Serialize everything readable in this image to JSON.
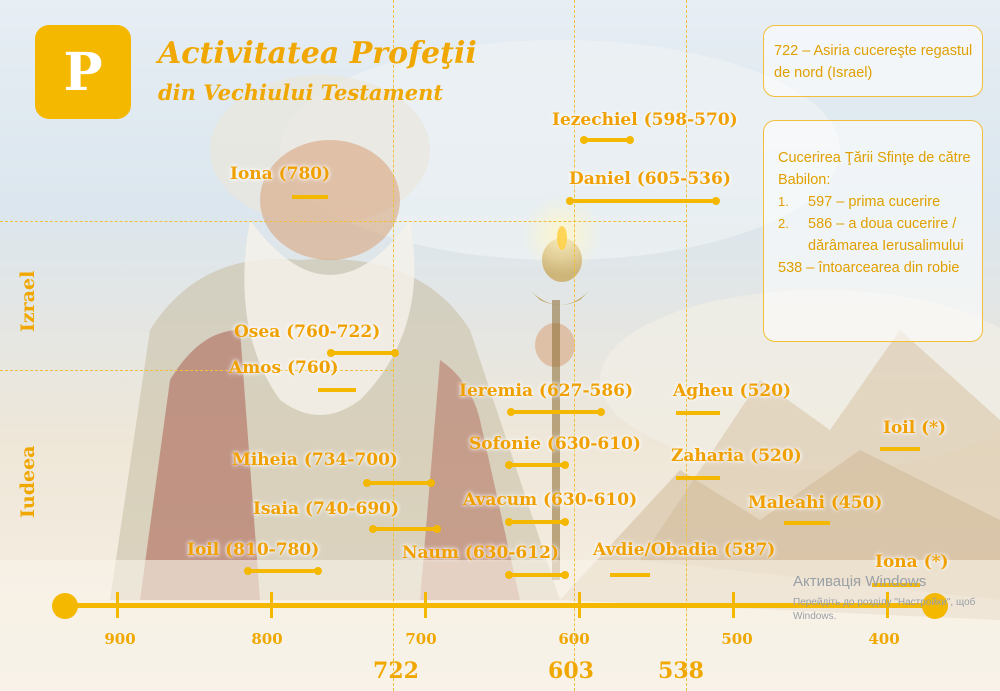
{
  "header": {
    "logo_letter": "P",
    "title_line1": "Activitatea Profeţii",
    "title_line2": "din Vechiului Testament"
  },
  "info_box_1": {
    "text": "722 – Asiria cucereşte regastul de nord (Israel)"
  },
  "info_box_2": {
    "heading": "Cucerirea Ţării Sfinţe de către Babilon:",
    "items": [
      {
        "num": "1.",
        "text": "597 – prima cucerire"
      },
      {
        "num": "2.",
        "text": "586 – a doua cucerire / dărâmarea Ierusalimului"
      }
    ],
    "footer": "538 – întoarcearea din robie"
  },
  "side_labels": {
    "israel": "Izrael",
    "judea": "Iudeea"
  },
  "prophets": [
    {
      "label": "Iezechiel (598-570)",
      "start": 598,
      "end": 570,
      "kingdom": "babylon"
    },
    {
      "label": "Daniel (605-536)",
      "start": 605,
      "end": 536,
      "kingdom": "babylon"
    },
    {
      "label": "Iona (780)",
      "start": 780,
      "end": 780,
      "kingdom": "israel"
    },
    {
      "label": "Osea (760-722)",
      "start": 760,
      "end": 722,
      "kingdom": "israel"
    },
    {
      "label": "Amos (760)",
      "start": 760,
      "end": 760,
      "kingdom": "israel"
    },
    {
      "label": "Ieremia (627-586)",
      "start": 627,
      "end": 586,
      "kingdom": "judea"
    },
    {
      "label": "Agheu (520)",
      "start": 520,
      "end": 520,
      "kingdom": "judea"
    },
    {
      "label": "Ioil (*)",
      "start": null,
      "end": null,
      "kingdom": "judea"
    },
    {
      "label": "Sofonie (630-610)",
      "start": 630,
      "end": 610,
      "kingdom": "judea"
    },
    {
      "label": "Zaharia (520)",
      "start": 520,
      "end": 520,
      "kingdom": "judea"
    },
    {
      "label": "Miheia (734-700)",
      "start": 734,
      "end": 700,
      "kingdom": "judea"
    },
    {
      "label": "Avacum (630-610)",
      "start": 630,
      "end": 610,
      "kingdom": "judea"
    },
    {
      "label": "Maleahi (450)",
      "start": 450,
      "end": 450,
      "kingdom": "judea"
    },
    {
      "label": "Isaia (740-690)",
      "start": 740,
      "end": 690,
      "kingdom": "judea"
    },
    {
      "label": "Ioil (810-780)",
      "start": 810,
      "end": 780,
      "kingdom": "judea"
    },
    {
      "label": "Naum (630-612)",
      "start": 630,
      "end": 612,
      "kingdom": "judea"
    },
    {
      "label": "Avdie/Obadia (587)",
      "start": 587,
      "end": 587,
      "kingdom": "judea"
    },
    {
      "label": "Iona (*)",
      "start": null,
      "end": null,
      "kingdom": "judea"
    }
  ],
  "axis": {
    "ticks": [
      "900",
      "800",
      "700",
      "600",
      "500",
      "400"
    ],
    "key_years": [
      "722",
      "603",
      "538"
    ]
  },
  "watermark": {
    "line1": "Активація Windows",
    "line2": "Перейдіть до розділу \"Настройки\", щоб",
    "line3": "Windows."
  },
  "colors": {
    "accent": "#f4b800",
    "text": "#f0a800"
  }
}
